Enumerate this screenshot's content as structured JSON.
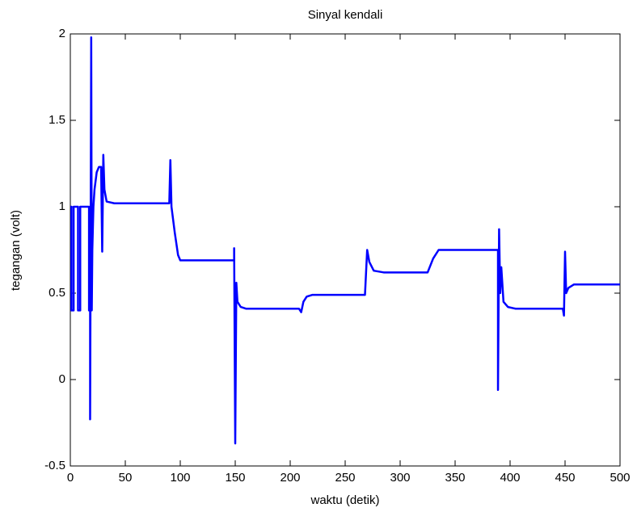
{
  "chart_data": {
    "type": "line",
    "title": "Sinyal kendali",
    "x_label": "waktu (detik)",
    "y_label": "tegangan (volt)",
    "xlim": [
      0,
      500
    ],
    "ylim": [
      -0.5,
      2
    ],
    "xticks": [
      0,
      50,
      100,
      150,
      200,
      250,
      300,
      350,
      400,
      450,
      500
    ],
    "yticks": [
      -0.5,
      0,
      0.5,
      1,
      1.5,
      2
    ],
    "grid": false,
    "series": [
      {
        "color": "#0000ff",
        "x": [
          0,
          1,
          1,
          3,
          3,
          7,
          7,
          9,
          9,
          17,
          17,
          18,
          18,
          19,
          19.5,
          20,
          21,
          22,
          24,
          26,
          28,
          29,
          30,
          31,
          33,
          40,
          90,
          91,
          92,
          95,
          98,
          100,
          110,
          149,
          149,
          150,
          151,
          152,
          155,
          160,
          208,
          210,
          212,
          215,
          220,
          268,
          269,
          270,
          272,
          276,
          285,
          325,
          330,
          335,
          360,
          389,
          389,
          390,
          391,
          392,
          394,
          398,
          405,
          448,
          449,
          450,
          451,
          453,
          458,
          500
        ],
        "values": [
          1.0,
          1.0,
          0.4,
          0.4,
          1.0,
          1.0,
          0.4,
          0.4,
          1.0,
          1.0,
          0.4,
          0.4,
          -0.23,
          1.98,
          0.4,
          0.75,
          1.0,
          1.1,
          1.2,
          1.23,
          1.23,
          0.74,
          1.3,
          1.1,
          1.03,
          1.02,
          1.02,
          1.27,
          1.0,
          0.85,
          0.72,
          0.69,
          0.69,
          0.69,
          0.76,
          -0.37,
          0.56,
          0.45,
          0.42,
          0.41,
          0.41,
          0.39,
          0.45,
          0.48,
          0.49,
          0.49,
          0.62,
          0.75,
          0.68,
          0.63,
          0.62,
          0.62,
          0.7,
          0.75,
          0.75,
          0.75,
          -0.06,
          0.87,
          0.5,
          0.65,
          0.45,
          0.42,
          0.41,
          0.41,
          0.37,
          0.74,
          0.5,
          0.53,
          0.55,
          0.55
        ]
      }
    ]
  }
}
